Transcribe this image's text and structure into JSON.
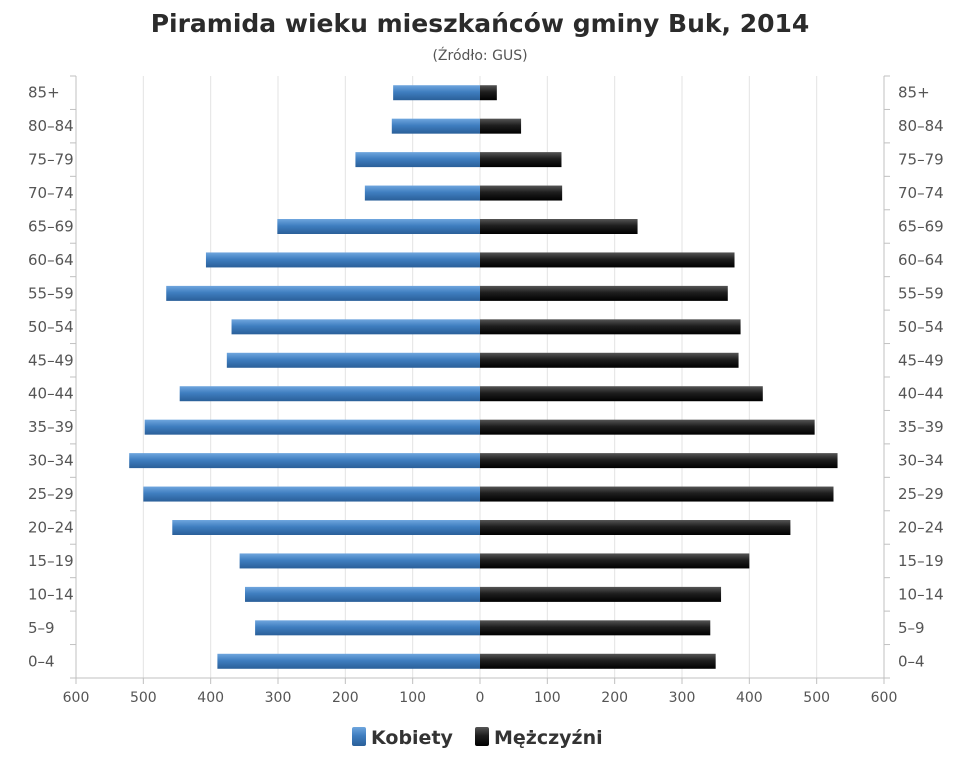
{
  "chart_data": {
    "type": "bar",
    "orientation": "horizontal",
    "title": "Piramida wieku mieszkańców gminy Buk, 2014",
    "subtitle": "(Źródło: GUS)",
    "categories": [
      "85+",
      "80–84",
      "75–79",
      "70–74",
      "65–69",
      "60–64",
      "55–59",
      "50–54",
      "45–49",
      "40–44",
      "35–39",
      "30–34",
      "25–29",
      "20–24",
      "15–19",
      "10–14",
      "5–9",
      "0–4"
    ],
    "x_ticks": [
      "600",
      "500",
      "400",
      "300",
      "200",
      "100",
      "0",
      "100",
      "200",
      "300",
      "400",
      "500",
      "600"
    ],
    "xlim": [
      -600,
      600
    ],
    "grid": true,
    "legend_position": "bottom",
    "series": [
      {
        "name": "Kobiety",
        "color": "#3f7ec0",
        "values": [
          129,
          131,
          185,
          171,
          301,
          407,
          466,
          369,
          376,
          446,
          498,
          521,
          500,
          457,
          357,
          349,
          334,
          390
        ]
      },
      {
        "name": "Mężczyźni",
        "color": "#1e1e1e",
        "values": [
          25,
          61,
          121,
          122,
          234,
          378,
          368,
          387,
          384,
          420,
          497,
          531,
          525,
          461,
          400,
          358,
          342,
          350
        ]
      }
    ]
  }
}
